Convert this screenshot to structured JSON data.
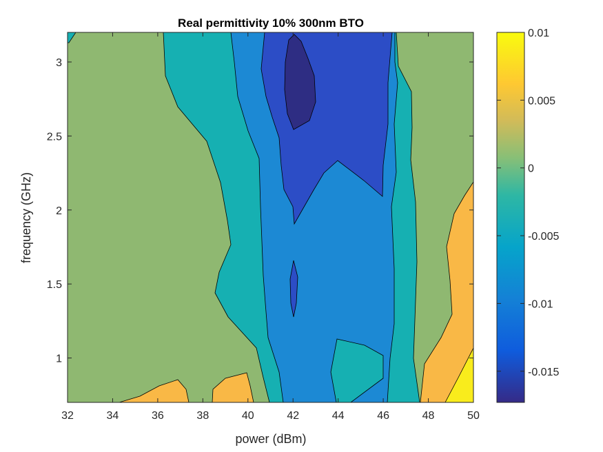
{
  "chart_data": {
    "type": "heatmap",
    "title": "Real permittivity 10% 300nm BTO",
    "xlabel": "power (dBm)",
    "ylabel": "frequency (GHz)",
    "xlim": [
      32,
      50
    ],
    "ylim": [
      0.7,
      3.2
    ],
    "xticks": [
      "32",
      "34",
      "36",
      "38",
      "40",
      "42",
      "44",
      "46",
      "48",
      "50"
    ],
    "yticks": [
      "1",
      "1.5",
      "2",
      "2.5",
      "3"
    ],
    "colorbar": {
      "range": [
        -0.0173,
        0.01
      ],
      "ticks": [
        "0.01",
        "0.005",
        "0",
        "-0.005",
        "-0.01",
        "-0.015"
      ]
    },
    "levels": [
      {
        "value": -0.0175,
        "color": "#2e2d83"
      },
      {
        "value": -0.0137,
        "color": "#2c4dc6"
      },
      {
        "value": -0.01,
        "color": "#1c89d4"
      },
      {
        "value": -0.0062,
        "color": "#16b0b2"
      },
      {
        "value": -0.0025,
        "color": "#8fb871"
      },
      {
        "value": 0.0013,
        "color": "#f9b846"
      },
      {
        "value": 0.005,
        "color": "#f9ec1c"
      }
    ],
    "regions": [
      {
        "level": 1,
        "points": [
          [
            39.5,
            3.2
          ],
          [
            46.5,
            3.2
          ],
          [
            46.1,
            2.6
          ],
          [
            46.1,
            2.5
          ],
          [
            45.7,
            2.02
          ],
          [
            44.4,
            2.22
          ],
          [
            43.6,
            2.34
          ],
          [
            42.9,
            2.02
          ],
          [
            41.9,
            1.9
          ],
          [
            41.4,
            2.4
          ],
          [
            40.8,
            2.7
          ],
          [
            40.6,
            3.0
          ],
          [
            40.5,
            3.2
          ]
        ]
      },
      {
        "level": 0,
        "points": [
          [
            42.0,
            2.55
          ],
          [
            42.7,
            2.7
          ],
          [
            42.3,
            3.14
          ],
          [
            41.9,
            3.0
          ],
          [
            41.8,
            2.8
          ]
        ]
      },
      {
        "level": 1,
        "points": [
          [
            41.9,
            1.68
          ],
          [
            42.1,
            1.5
          ],
          [
            42.05,
            1.3
          ],
          [
            41.9,
            1.3
          ],
          [
            41.85,
            1.5
          ]
        ]
      },
      {
        "level": 3,
        "points": [
          [
            44.0,
            1.0
          ],
          [
            44.2,
            0.7
          ],
          [
            45.8,
            0.7
          ],
          [
            46.1,
            0.85
          ],
          [
            44.4,
            0.98
          ],
          [
            44.2,
            1.15
          ]
        ]
      },
      {
        "level": 5,
        "points": [
          [
            33.3,
            0.7
          ],
          [
            34.3,
            0.73
          ],
          [
            35.5,
            0.8
          ],
          [
            36.0,
            0.85
          ],
          [
            37.1,
            0.8
          ],
          [
            37.3,
            0.75
          ],
          [
            37.3,
            0.7
          ]
        ]
      },
      {
        "level": 5,
        "points": [
          [
            38.3,
            0.7
          ],
          [
            38.6,
            0.8
          ],
          [
            39.5,
            0.88
          ],
          [
            40.1,
            0.9
          ],
          [
            40.2,
            0.8
          ],
          [
            40.3,
            0.7
          ]
        ]
      },
      {
        "level": 5,
        "points": [
          [
            47.8,
            0.7
          ],
          [
            48.0,
            0.9
          ],
          [
            48.8,
            1.25
          ],
          [
            48.9,
            1.6
          ],
          [
            48.8,
            1.8
          ],
          [
            49.2,
            2.1
          ],
          [
            50.0,
            2.2
          ],
          [
            50.0,
            0.7
          ]
        ]
      },
      {
        "level": 6,
        "points": [
          [
            49.0,
            0.7
          ],
          [
            49.6,
            0.95
          ],
          [
            50.0,
            1.08
          ],
          [
            50.0,
            0.7
          ]
        ]
      }
    ]
  }
}
